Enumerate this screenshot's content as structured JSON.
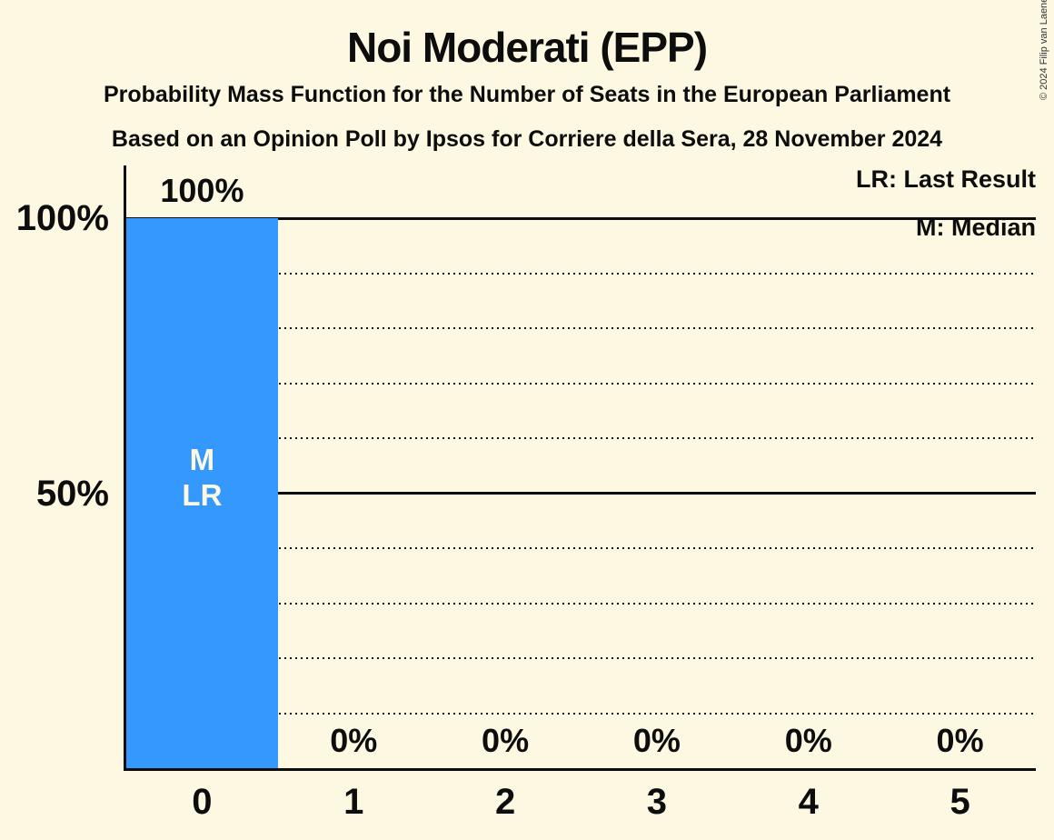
{
  "page": {
    "title": "Noi Moderati (EPP)",
    "subtitle_line1": "Probability Mass Function for the Number of Seats in the European Parliament",
    "subtitle_line2": "Based on an Opinion Poll by Ipsos for Corriere della Sera, 28 November 2024",
    "copyright": "© 2024 Filip van Laenen"
  },
  "legend": {
    "last_result": "LR: Last Result",
    "median": "M: Median"
  },
  "colors": {
    "background": "#fcf8e2",
    "bar": "#3598fc",
    "text": "#0d0d0d",
    "bar_label": "#fcf8e2"
  },
  "chart_data": {
    "type": "bar",
    "title": "Noi Moderati (EPP)",
    "categories": [
      "0",
      "1",
      "2",
      "3",
      "4",
      "5"
    ],
    "values": [
      100,
      0,
      0,
      0,
      0,
      0
    ],
    "bar_value_labels": [
      "100%",
      "0%",
      "0%",
      "0%",
      "0%",
      "0%"
    ],
    "y_ticks": [
      100,
      50
    ],
    "y_tick_labels": [
      "100%",
      "50%"
    ],
    "ylim": [
      0,
      100
    ],
    "gridlines_solid": [
      100,
      50
    ],
    "gridlines_dotted": [
      90,
      80,
      70,
      60,
      40,
      30,
      20,
      10
    ],
    "legend_position": "top-right",
    "median_category": "0",
    "last_result_category": "0",
    "bar_annotation": {
      "category": "0",
      "lines": [
        "M",
        "LR"
      ]
    }
  }
}
